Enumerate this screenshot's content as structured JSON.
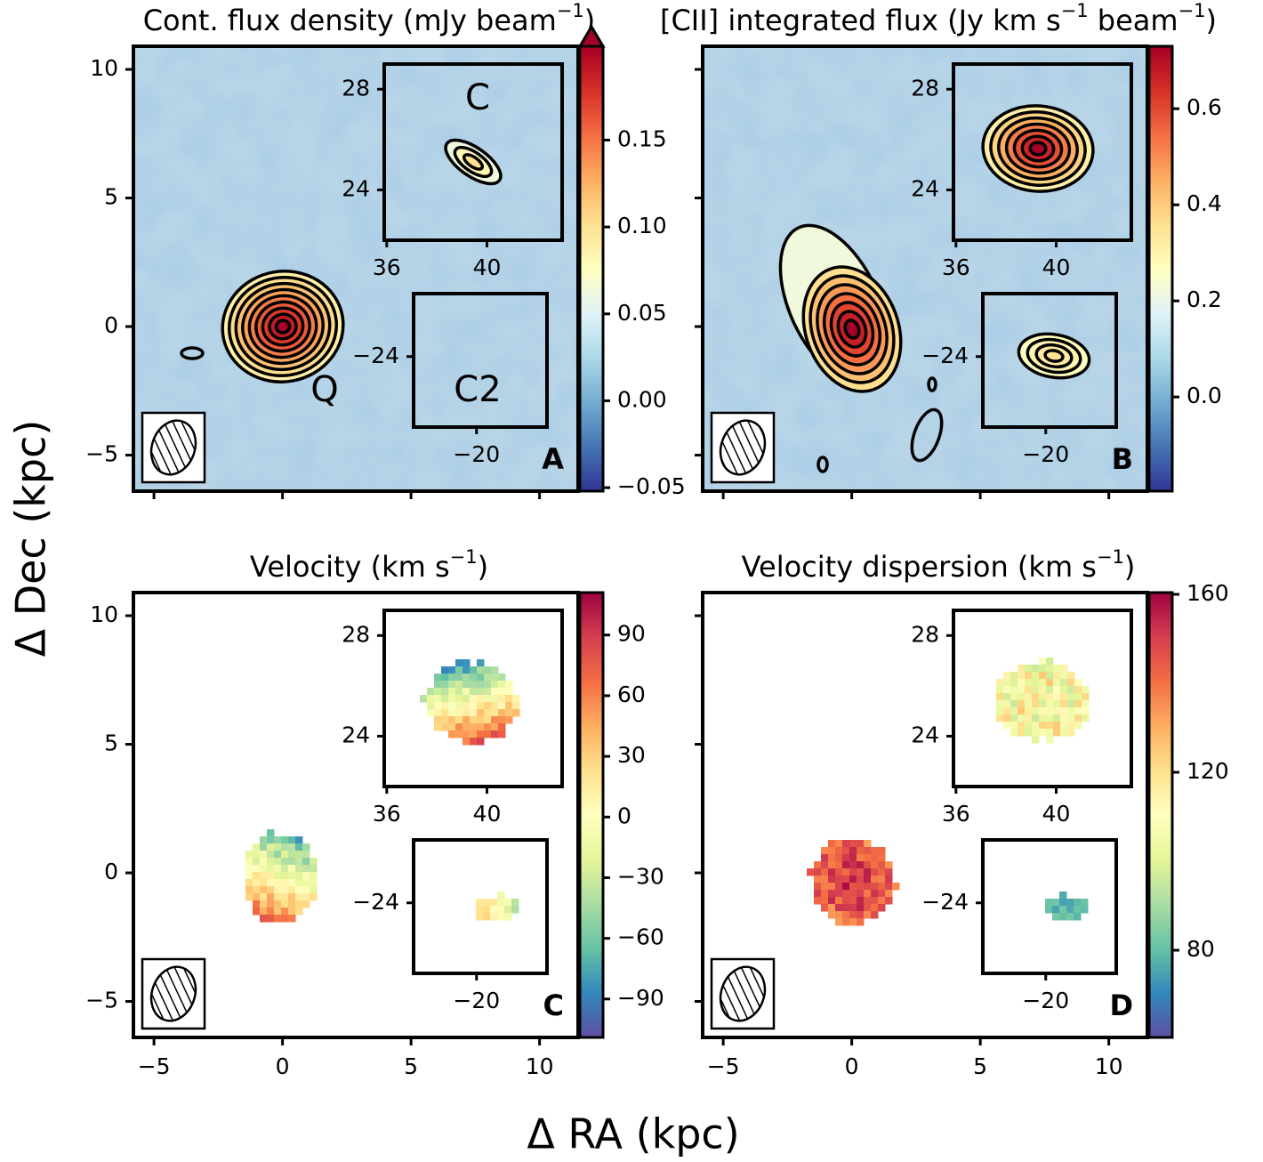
{
  "figure": {
    "xlabel": "Δ RA (kpc)",
    "ylabel": "Δ Dec (kpc)"
  },
  "chart_data": [
    {
      "type": "image",
      "title": [
        "Cont. flux density (mJy beam",
        "−1",
        ")"
      ],
      "panel_label": "A",
      "annotations": [
        "Q",
        "C",
        "C2"
      ],
      "colormap": "RdYlBu_r",
      "colorbar_extend": "max",
      "contours": true,
      "xlim": [
        -5.8,
        11.5
      ],
      "ylim": [
        -6.4,
        10.9
      ],
      "xticks": [
        -5,
        0,
        5,
        10
      ],
      "yticks": [
        {
          "value": -5,
          "label": "−5"
        },
        0,
        5,
        10
      ],
      "clim": [
        -0.052,
        0.204
      ],
      "cticks": [
        {
          "value": -0.05,
          "label": "−0.05"
        },
        {
          "value": 0,
          "label": "0.00"
        },
        0.05,
        {
          "value": 0.1,
          "label": "0.10"
        },
        0.15
      ],
      "insets": [
        {
          "xlim": [
            35.9,
            43
          ],
          "ylim": [
            22,
            29
          ],
          "xticks": [
            36,
            40
          ],
          "yticks": [
            24,
            28
          ]
        },
        {
          "xlim": [
            -22.5,
            -17.2
          ],
          "ylim": [
            -26.8,
            -21.5
          ],
          "xticks": [
            {
              "value": -20,
              "label": "−20"
            }
          ],
          "yticks": [
            {
              "value": -24,
              "label": "−24"
            }
          ]
        }
      ]
    },
    {
      "type": "image",
      "title": [
        "[CII] integrated flux (Jy km s",
        "−1",
        " beam",
        "−1",
        ")"
      ],
      "panel_label": "B",
      "colormap": "RdYlBu_r",
      "contours": true,
      "xlim": [
        -5.8,
        11.5
      ],
      "ylim": [
        -6.4,
        10.9
      ],
      "xticks": [
        -5,
        0,
        5,
        10
      ],
      "yticks": [
        -5,
        0,
        5,
        10
      ],
      "clim": [
        -0.196,
        0.73
      ],
      "cticks": [
        {
          "value": 0,
          "label": "0.0"
        },
        0.2,
        0.4,
        0.6
      ],
      "insets": [
        {
          "xlim": [
            35.9,
            43
          ],
          "ylim": [
            22,
            29
          ],
          "xticks": [
            36,
            40
          ],
          "yticks": [
            24,
            28
          ]
        },
        {
          "xlim": [
            -22.5,
            -17.2
          ],
          "ylim": [
            -26.8,
            -21.5
          ],
          "xticks": [
            {
              "value": -20,
              "label": "−20"
            }
          ],
          "yticks": [
            {
              "value": -24,
              "label": "−24"
            }
          ]
        }
      ]
    },
    {
      "type": "image",
      "title": [
        "Velocity (km s",
        "−1",
        ")"
      ],
      "panel_label": "C",
      "colormap": "Spectral_r",
      "xlim": [
        -5.8,
        11.5
      ],
      "ylim": [
        -6.4,
        10.9
      ],
      "xticks": [
        {
          "value": -5,
          "label": "−5"
        },
        0,
        5,
        10
      ],
      "yticks": [
        {
          "value": -5,
          "label": "−5"
        },
        0,
        5,
        10
      ],
      "clim": [
        -109,
        111
      ],
      "cticks": [
        {
          "value": -90,
          "label": "−90"
        },
        {
          "value": -60,
          "label": "−60"
        },
        {
          "value": -30,
          "label": "−30"
        },
        0,
        30,
        60,
        90
      ],
      "insets": [
        {
          "xlim": [
            35.9,
            43
          ],
          "ylim": [
            22,
            29
          ],
          "xticks": [
            36,
            40
          ],
          "yticks": [
            24,
            28
          ]
        },
        {
          "xlim": [
            -22.5,
            -17.2
          ],
          "ylim": [
            -26.8,
            -21.5
          ],
          "xticks": [
            {
              "value": -20,
              "label": "−20"
            }
          ],
          "yticks": [
            {
              "value": -24,
              "label": "−24"
            }
          ]
        }
      ]
    },
    {
      "type": "image",
      "title": [
        "Velocity dispersion (km s",
        "−1",
        ")"
      ],
      "panel_label": "D",
      "colormap": "Spectral_r",
      "xlim": [
        -5.8,
        11.5
      ],
      "ylim": [
        -6.4,
        10.9
      ],
      "xticks": [
        {
          "value": -5,
          "label": "−5"
        },
        0,
        5,
        10
      ],
      "yticks": [
        -5,
        0,
        5,
        10
      ],
      "clim": [
        60.4,
        160.4
      ],
      "cticks": [
        80,
        120,
        160
      ],
      "insets": [
        {
          "xlim": [
            35.9,
            43
          ],
          "ylim": [
            22,
            29
          ],
          "xticks": [
            36,
            40
          ],
          "yticks": [
            24,
            28
          ]
        },
        {
          "xlim": [
            -22.5,
            -17.2
          ],
          "ylim": [
            -26.8,
            -21.5
          ],
          "xticks": [
            {
              "value": -20,
              "label": "−20"
            }
          ],
          "yticks": [
            {
              "value": -24,
              "label": "−24"
            }
          ]
        }
      ]
    }
  ]
}
